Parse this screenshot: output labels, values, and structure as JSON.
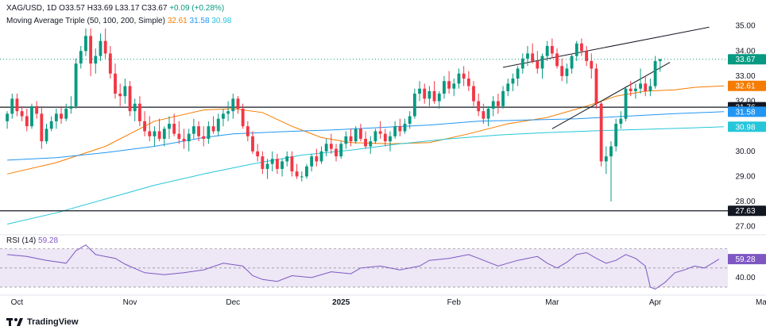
{
  "header": {
    "symbol": "XAG/USD",
    "interval": "1D",
    "open_label": "O",
    "open": "33.57",
    "high_label": "H",
    "high": "33.69",
    "low_label": "L",
    "low": "33.17",
    "close_label": "C",
    "close": "33.67",
    "change": "+0.09 (+0.28%)",
    "ma_title": "Moving Average Triple (50, 100, 200, Simple)",
    "ma50": "32.61",
    "ma100": "31.58",
    "ma200": "30.98",
    "rsi_title": "RSI (14)",
    "rsi_value": "59.28"
  },
  "brand": "TradingView",
  "colors": {
    "up": "#089981",
    "down": "#f23645",
    "ma50": "#f57c00",
    "ma100": "#2196f3",
    "ma200": "#26c6da",
    "rsi": "#7e57c2",
    "rsi_band": "#ede7f6",
    "hline": "#131722",
    "trend": "#131722"
  },
  "chart_data": {
    "type": "candlestick",
    "title": "XAG/USD 1D",
    "price_axis": {
      "min": 26.8,
      "max": 35.4,
      "ticks": [
        "27.00",
        "28.00",
        "29.00",
        "30.00",
        "32.00",
        "33.00",
        "34.00",
        "35.00"
      ]
    },
    "rsi_axis": {
      "min": 25,
      "max": 78,
      "ticks": [
        "40.00"
      ]
    },
    "x_ticks": [
      {
        "label": "Oct",
        "index": 2
      },
      {
        "label": "Nov",
        "index": 25
      },
      {
        "label": "Dec",
        "index": 46
      },
      {
        "label": "2025",
        "index": 68
      },
      {
        "label": "Feb",
        "index": 91
      },
      {
        "label": "Mar",
        "index": 111
      },
      {
        "label": "Apr",
        "index": 132
      },
      {
        "label": "May",
        "index": 154
      }
    ],
    "price_tags": [
      {
        "value": 33.67,
        "label": "33.67",
        "color": "#089981"
      },
      {
        "value": 32.61,
        "label": "32.61",
        "color": "#f57c00"
      },
      {
        "value": 31.76,
        "label": "31.76",
        "color": "#131722"
      },
      {
        "value": 31.58,
        "label": "31.58",
        "color": "#2196f3"
      },
      {
        "value": 30.98,
        "label": "30.98",
        "color": "#26c6da"
      },
      {
        "value": 27.63,
        "label": "27.63",
        "color": "#131722"
      }
    ],
    "horizontal_levels": [
      31.76,
      27.63
    ],
    "current_price": 33.67,
    "trendlines": [
      {
        "from": {
          "index": 101,
          "price": 33.35
        },
        "to": {
          "index": 143,
          "price": 34.95
        }
      },
      {
        "from": {
          "index": 111,
          "price": 30.9
        },
        "to": {
          "index": 135,
          "price": 33.55
        }
      }
    ],
    "ohlc": [
      [
        31.2,
        31.6,
        30.9,
        31.5
      ],
      [
        31.5,
        32.3,
        31.3,
        32.1
      ],
      [
        32.1,
        32.3,
        31.4,
        31.6
      ],
      [
        31.6,
        31.8,
        31.2,
        31.4
      ],
      [
        31.4,
        31.7,
        30.8,
        31.0
      ],
      [
        31.0,
        31.9,
        30.9,
        31.8
      ],
      [
        31.8,
        32.0,
        31.3,
        31.5
      ],
      [
        31.5,
        31.8,
        30.1,
        30.4
      ],
      [
        30.4,
        31.1,
        30.3,
        30.9
      ],
      [
        30.9,
        31.4,
        30.8,
        31.2
      ],
      [
        31.2,
        31.7,
        30.9,
        31.5
      ],
      [
        31.5,
        31.8,
        31.1,
        31.3
      ],
      [
        31.3,
        31.9,
        31.2,
        31.7
      ],
      [
        31.7,
        32.2,
        31.5,
        31.8
      ],
      [
        31.8,
        33.7,
        31.7,
        33.5
      ],
      [
        33.5,
        34.2,
        33.3,
        34.0
      ],
      [
        34.0,
        34.9,
        33.8,
        34.6
      ],
      [
        34.6,
        34.9,
        33.0,
        33.5
      ],
      [
        33.5,
        34.1,
        33.1,
        33.8
      ],
      [
        33.8,
        34.7,
        33.6,
        34.4
      ],
      [
        34.4,
        34.9,
        33.7,
        33.9
      ],
      [
        33.9,
        34.2,
        32.9,
        33.1
      ],
      [
        33.1,
        33.5,
        32.1,
        32.3
      ],
      [
        32.3,
        32.7,
        31.8,
        32.2
      ],
      [
        32.2,
        32.9,
        31.9,
        32.6
      ],
      [
        32.6,
        32.8,
        31.4,
        31.6
      ],
      [
        31.6,
        32.1,
        31.2,
        31.9
      ],
      [
        31.9,
        32.2,
        31.0,
        31.2
      ],
      [
        31.2,
        31.6,
        30.6,
        30.8
      ],
      [
        30.8,
        31.4,
        30.4,
        30.6
      ],
      [
        30.6,
        31.0,
        30.2,
        30.8
      ],
      [
        30.8,
        31.3,
        30.4,
        30.5
      ],
      [
        30.5,
        31.0,
        30.2,
        30.9
      ],
      [
        30.9,
        31.4,
        30.5,
        31.1
      ],
      [
        31.1,
        31.5,
        30.6,
        30.7
      ],
      [
        30.7,
        31.2,
        30.3,
        30.5
      ],
      [
        30.5,
        30.9,
        30.1,
        30.4
      ],
      [
        30.4,
        30.9,
        30.0,
        30.7
      ],
      [
        30.7,
        31.3,
        30.5,
        31.0
      ],
      [
        31.0,
        31.2,
        30.4,
        30.6
      ],
      [
        30.6,
        31.0,
        30.2,
        30.5
      ],
      [
        30.5,
        31.2,
        30.3,
        31.0
      ],
      [
        31.0,
        31.4,
        30.7,
        30.8
      ],
      [
        30.8,
        31.5,
        30.6,
        31.3
      ],
      [
        31.3,
        31.7,
        31.0,
        31.5
      ],
      [
        31.5,
        32.0,
        31.2,
        31.6
      ],
      [
        31.6,
        32.3,
        31.3,
        32.1
      ],
      [
        32.1,
        32.2,
        31.5,
        31.7
      ],
      [
        31.7,
        31.9,
        30.9,
        31.0
      ],
      [
        31.0,
        31.2,
        30.4,
        30.6
      ],
      [
        30.6,
        30.8,
        29.9,
        30.0
      ],
      [
        30.0,
        30.3,
        29.6,
        29.8
      ],
      [
        29.8,
        30.0,
        29.1,
        29.3
      ],
      [
        29.3,
        29.7,
        28.9,
        29.5
      ],
      [
        29.5,
        30.0,
        29.2,
        29.7
      ],
      [
        29.7,
        29.9,
        29.1,
        29.3
      ],
      [
        29.3,
        29.7,
        29.0,
        29.6
      ],
      [
        29.6,
        30.0,
        29.4,
        29.8
      ],
      [
        29.8,
        30.0,
        29.0,
        29.2
      ],
      [
        29.2,
        29.5,
        28.9,
        29.0
      ],
      [
        29.0,
        29.2,
        28.8,
        29.0
      ],
      [
        29.0,
        29.5,
        28.9,
        29.4
      ],
      [
        29.4,
        29.9,
        29.2,
        29.8
      ],
      [
        29.8,
        30.1,
        29.4,
        29.6
      ],
      [
        29.6,
        30.2,
        29.5,
        30.0
      ],
      [
        30.0,
        30.5,
        29.8,
        30.3
      ],
      [
        30.3,
        30.7,
        29.9,
        30.1
      ],
      [
        30.1,
        30.3,
        29.6,
        29.8
      ],
      [
        29.8,
        30.4,
        29.7,
        30.3
      ],
      [
        30.3,
        30.8,
        30.1,
        30.6
      ],
      [
        30.6,
        30.9,
        30.2,
        30.4
      ],
      [
        30.4,
        31.0,
        30.3,
        30.9
      ],
      [
        30.9,
        31.1,
        30.4,
        30.5
      ],
      [
        30.5,
        30.8,
        30.1,
        30.2
      ],
      [
        30.2,
        30.6,
        29.9,
        30.4
      ],
      [
        30.4,
        30.9,
        30.3,
        30.8
      ],
      [
        30.8,
        31.2,
        30.5,
        30.7
      ],
      [
        30.7,
        30.9,
        30.2,
        30.4
      ],
      [
        30.4,
        30.8,
        30.0,
        30.6
      ],
      [
        30.6,
        31.2,
        30.5,
        31.0
      ],
      [
        31.0,
        31.3,
        30.6,
        30.8
      ],
      [
        30.8,
        31.3,
        30.7,
        31.1
      ],
      [
        31.1,
        31.6,
        30.9,
        31.4
      ],
      [
        31.4,
        32.5,
        31.3,
        32.3
      ],
      [
        32.3,
        32.8,
        32.0,
        32.5
      ],
      [
        32.5,
        32.7,
        31.9,
        32.1
      ],
      [
        32.1,
        32.6,
        31.8,
        32.4
      ],
      [
        32.4,
        32.8,
        31.9,
        32.0
      ],
      [
        32.0,
        32.4,
        31.7,
        32.3
      ],
      [
        32.3,
        33.0,
        32.1,
        32.8
      ],
      [
        32.8,
        33.2,
        32.3,
        32.5
      ],
      [
        32.5,
        32.9,
        32.2,
        32.7
      ],
      [
        32.7,
        33.3,
        32.5,
        33.1
      ],
      [
        33.1,
        33.4,
        32.6,
        32.9
      ],
      [
        32.9,
        33.2,
        32.4,
        32.6
      ],
      [
        32.6,
        32.8,
        31.8,
        32.0
      ],
      [
        32.0,
        32.3,
        31.4,
        31.6
      ],
      [
        31.6,
        31.9,
        31.1,
        31.3
      ],
      [
        31.3,
        31.8,
        31.0,
        31.7
      ],
      [
        31.7,
        32.2,
        31.4,
        32.0
      ],
      [
        32.0,
        32.3,
        31.5,
        31.8
      ],
      [
        31.8,
        32.6,
        31.7,
        32.4
      ],
      [
        32.4,
        32.9,
        32.2,
        32.7
      ],
      [
        32.7,
        33.1,
        32.4,
        32.9
      ],
      [
        32.9,
        33.4,
        32.6,
        33.3
      ],
      [
        33.3,
        33.9,
        33.1,
        33.7
      ],
      [
        33.7,
        34.2,
        33.4,
        33.9
      ],
      [
        33.9,
        34.3,
        33.5,
        33.6
      ],
      [
        33.6,
        34.0,
        33.1,
        33.3
      ],
      [
        33.3,
        33.9,
        32.9,
        33.8
      ],
      [
        33.8,
        34.4,
        33.6,
        34.2
      ],
      [
        34.2,
        34.5,
        33.7,
        33.9
      ],
      [
        33.9,
        34.1,
        33.3,
        33.4
      ],
      [
        33.4,
        33.7,
        32.8,
        33.0
      ],
      [
        33.0,
        33.5,
        32.7,
        33.3
      ],
      [
        33.3,
        33.9,
        33.1,
        33.8
      ],
      [
        33.8,
        34.4,
        33.6,
        34.3
      ],
      [
        34.3,
        34.5,
        33.8,
        34.0
      ],
      [
        34.0,
        34.2,
        33.4,
        33.6
      ],
      [
        33.6,
        33.9,
        32.9,
        33.3
      ],
      [
        33.3,
        33.5,
        31.7,
        31.9
      ],
      [
        31.9,
        32.0,
        29.4,
        29.6
      ],
      [
        29.6,
        30.2,
        29.1,
        29.8
      ],
      [
        29.8,
        30.4,
        28.0,
        30.2
      ],
      [
        30.2,
        31.3,
        30.0,
        31.1
      ],
      [
        31.1,
        31.6,
        30.9,
        31.3
      ],
      [
        31.3,
        32.6,
        31.2,
        32.5
      ],
      [
        32.5,
        32.8,
        32.2,
        32.4
      ],
      [
        32.4,
        32.7,
        32.1,
        32.5
      ],
      [
        32.5,
        33.3,
        32.3,
        32.7
      ],
      [
        32.7,
        33.0,
        32.2,
        32.4
      ],
      [
        32.4,
        32.9,
        32.2,
        32.6
      ],
      [
        32.6,
        33.8,
        32.5,
        33.6
      ],
      [
        33.6,
        33.69,
        33.17,
        33.67
      ]
    ],
    "ma50": [
      [
        0,
        29.1
      ],
      [
        10,
        29.55
      ],
      [
        20,
        30.2
      ],
      [
        30,
        31.2
      ],
      [
        40,
        31.65
      ],
      [
        46,
        31.7
      ],
      [
        52,
        31.55
      ],
      [
        58,
        31.0
      ],
      [
        64,
        30.55
      ],
      [
        70,
        30.35
      ],
      [
        78,
        30.3
      ],
      [
        86,
        30.35
      ],
      [
        94,
        30.7
      ],
      [
        102,
        31.1
      ],
      [
        110,
        31.35
      ],
      [
        118,
        31.8
      ],
      [
        124,
        32.2
      ],
      [
        130,
        32.4
      ],
      [
        136,
        32.45
      ],
      [
        140,
        32.55
      ],
      [
        146,
        32.61
      ]
    ],
    "ma100": [
      [
        0,
        29.65
      ],
      [
        10,
        29.75
      ],
      [
        20,
        29.95
      ],
      [
        30,
        30.2
      ],
      [
        40,
        30.55
      ],
      [
        46,
        30.7
      ],
      [
        52,
        30.75
      ],
      [
        58,
        30.8
      ],
      [
        66,
        30.85
      ],
      [
        76,
        30.95
      ],
      [
        86,
        31.05
      ],
      [
        96,
        31.2
      ],
      [
        106,
        31.25
      ],
      [
        116,
        31.3
      ],
      [
        126,
        31.4
      ],
      [
        136,
        31.5
      ],
      [
        146,
        31.58
      ]
    ],
    "ma200": [
      [
        0,
        27.1
      ],
      [
        10,
        27.55
      ],
      [
        20,
        28.1
      ],
      [
        30,
        28.65
      ],
      [
        40,
        29.1
      ],
      [
        50,
        29.5
      ],
      [
        60,
        29.85
      ],
      [
        70,
        30.05
      ],
      [
        80,
        30.3
      ],
      [
        90,
        30.5
      ],
      [
        100,
        30.65
      ],
      [
        110,
        30.75
      ],
      [
        120,
        30.82
      ],
      [
        130,
        30.88
      ],
      [
        140,
        30.94
      ],
      [
        146,
        30.98
      ]
    ],
    "rsi": [
      [
        0,
        64
      ],
      [
        4,
        62
      ],
      [
        8,
        58
      ],
      [
        12,
        55
      ],
      [
        14,
        68
      ],
      [
        16,
        74
      ],
      [
        18,
        64
      ],
      [
        22,
        60
      ],
      [
        24,
        54
      ],
      [
        28,
        45
      ],
      [
        32,
        43
      ],
      [
        36,
        45
      ],
      [
        40,
        48
      ],
      [
        44,
        55
      ],
      [
        48,
        52
      ],
      [
        50,
        42
      ],
      [
        52,
        38
      ],
      [
        55,
        36
      ],
      [
        58,
        42
      ],
      [
        62,
        40
      ],
      [
        66,
        46
      ],
      [
        70,
        44
      ],
      [
        72,
        50
      ],
      [
        76,
        52
      ],
      [
        80,
        48
      ],
      [
        84,
        52
      ],
      [
        86,
        58
      ],
      [
        90,
        60
      ],
      [
        94,
        64
      ],
      [
        96,
        60
      ],
      [
        100,
        52
      ],
      [
        104,
        58
      ],
      [
        108,
        62
      ],
      [
        110,
        55
      ],
      [
        112,
        50
      ],
      [
        114,
        56
      ],
      [
        116,
        64
      ],
      [
        118,
        66
      ],
      [
        120,
        60
      ],
      [
        122,
        55
      ],
      [
        124,
        58
      ],
      [
        126,
        64
      ],
      [
        128,
        60
      ],
      [
        130,
        52
      ],
      [
        131,
        30
      ],
      [
        132,
        28
      ],
      [
        134,
        35
      ],
      [
        136,
        45
      ],
      [
        138,
        48
      ],
      [
        140,
        52
      ],
      [
        142,
        50
      ],
      [
        144,
        56
      ],
      [
        145,
        59.28
      ]
    ],
    "rsi_levels": [
      70,
      50,
      30
    ]
  }
}
